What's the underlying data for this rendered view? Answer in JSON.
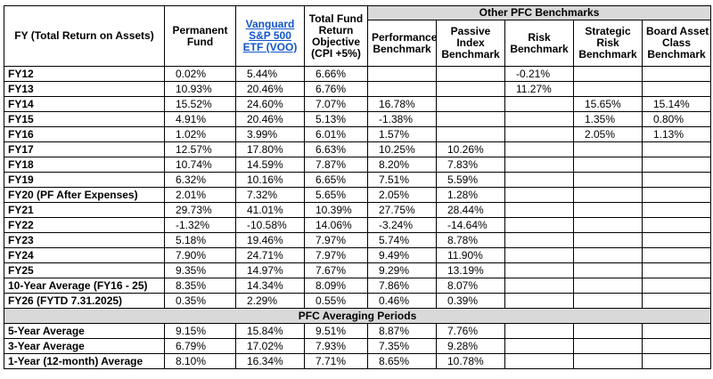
{
  "group_header": "Other PFC Benchmarks",
  "columns": {
    "fy": "FY (Total Return on Assets)",
    "permanent": [
      "Permanent",
      "Fund"
    ],
    "vanguard": [
      "Vanguard",
      "S&P 500",
      "ETF (VOO)"
    ],
    "objective": [
      "Total Fund",
      "Return",
      "Objective",
      "(CPI +5%)"
    ],
    "performance": [
      "Performance",
      "Benchmark"
    ],
    "passive": [
      "Passive",
      "Index",
      "Benchmark"
    ],
    "risk": [
      "Risk",
      "Benchmark"
    ],
    "strategic": [
      "Strategic",
      "Risk",
      "Benchmark"
    ],
    "board": [
      "Board Asset",
      "Class",
      "Benchmark"
    ]
  },
  "rows": [
    [
      "FY12",
      "0.02%",
      "5.44%",
      "6.66%",
      "",
      "",
      "-0.21%",
      "",
      ""
    ],
    [
      "FY13",
      "10.93%",
      "20.46%",
      "6.76%",
      "",
      "",
      "11.27%",
      "",
      ""
    ],
    [
      "FY14",
      "15.52%",
      "24.60%",
      "7.07%",
      "16.78%",
      "",
      "",
      "15.65%",
      "15.14%"
    ],
    [
      "FY15",
      "4.91%",
      "20.46%",
      "5.13%",
      "-1.38%",
      "",
      "",
      "1.35%",
      "0.80%"
    ],
    [
      "FY16",
      "1.02%",
      "3.99%",
      "6.01%",
      "1.57%",
      "",
      "",
      "2.05%",
      "1.13%"
    ],
    [
      "FY17",
      "12.57%",
      "17.80%",
      "6.63%",
      "10.25%",
      "10.26%",
      "",
      "",
      ""
    ],
    [
      "FY18",
      "10.74%",
      "14.59%",
      "7.87%",
      "8.20%",
      "7.83%",
      "",
      "",
      ""
    ],
    [
      "FY19",
      "6.32%",
      "10.16%",
      "6.65%",
      "7.51%",
      "5.59%",
      "",
      "",
      ""
    ],
    [
      "FY20 (PF After Expenses)",
      "2.01%",
      "7.32%",
      "5.65%",
      "2.05%",
      "1.28%",
      "",
      "",
      ""
    ],
    [
      "FY21",
      "29.73%",
      "41.01%",
      "10.39%",
      "27.75%",
      "28.44%",
      "",
      "",
      ""
    ],
    [
      "FY22",
      "-1.32%",
      "-10.58%",
      "14.06%",
      "-3.24%",
      "-14.64%",
      "",
      "",
      ""
    ],
    [
      "FY23",
      "5.18%",
      "19.46%",
      "7.97%",
      "5.74%",
      "8.78%",
      "",
      "",
      ""
    ],
    [
      "FY24",
      "7.90%",
      "24.71%",
      "7.97%",
      "9.49%",
      "11.90%",
      "",
      "",
      ""
    ],
    [
      "FY25",
      "9.35%",
      "14.97%",
      "7.67%",
      "9.29%",
      "13.19%",
      "",
      "",
      ""
    ],
    [
      "10-Year Average (FY16 - 25)",
      "8.35%",
      "14.34%",
      "8.09%",
      "7.86%",
      "8.07%",
      "",
      "",
      ""
    ],
    [
      "FY26 (FYTD 7.31.2025)",
      "0.35%",
      "2.29%",
      "0.55%",
      "0.46%",
      "0.39%",
      "",
      "",
      ""
    ]
  ],
  "section_title": "PFC Averaging Periods",
  "avg_rows": [
    [
      "5-Year Average",
      "9.15%",
      "15.84%",
      "9.51%",
      "8.87%",
      "7.76%",
      "",
      "",
      ""
    ],
    [
      "3-Year Average",
      "6.79%",
      "17.02%",
      "7.93%",
      "7.35%",
      "9.28%",
      "",
      "",
      ""
    ],
    [
      "1-Year (12-month) Average",
      "8.10%",
      "16.34%",
      "7.71%",
      "8.65%",
      "10.78%",
      "",
      "",
      ""
    ]
  ]
}
